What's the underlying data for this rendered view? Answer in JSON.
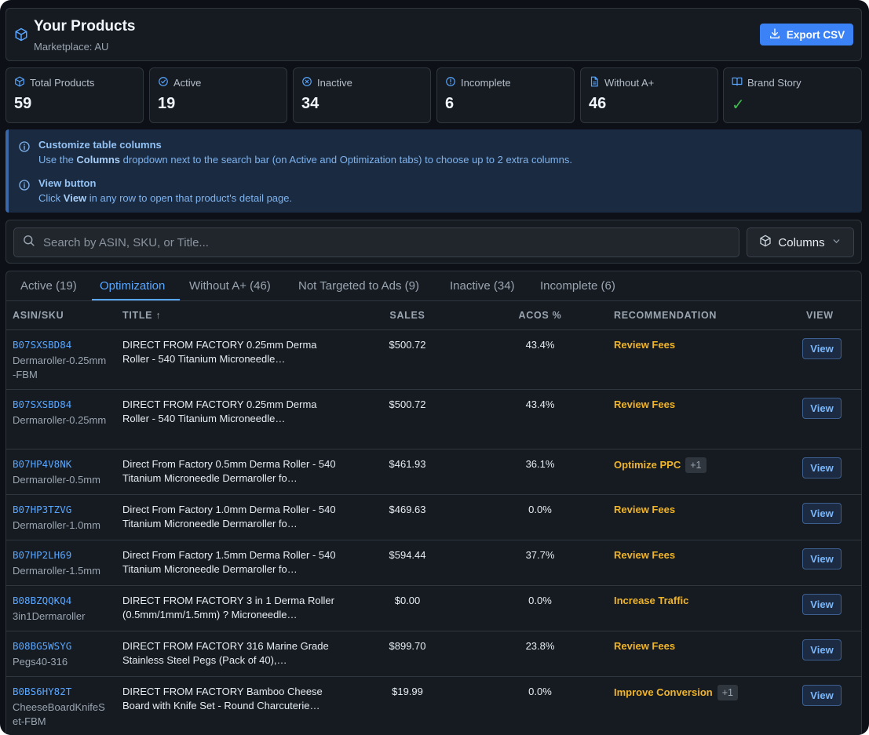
{
  "header": {
    "title": "Your Products",
    "subtitle": "Marketplace: AU",
    "export_label": "Export CSV",
    "icon": "box-icon"
  },
  "stats": [
    {
      "label": "Total Products",
      "value": "59",
      "icon": "box-icon"
    },
    {
      "label": "Active",
      "value": "19",
      "icon": "check-circle-icon"
    },
    {
      "label": "Inactive",
      "value": "34",
      "icon": "x-circle-icon"
    },
    {
      "label": "Incomplete",
      "value": "6",
      "icon": "alert-circle-icon"
    },
    {
      "label": "Without A+",
      "value": "46",
      "icon": "file-icon"
    },
    {
      "label": "Brand Story",
      "value": "✓",
      "icon": "book-open-icon"
    }
  ],
  "info": {
    "columns_title": "Customize table columns",
    "columns_pre": "Use the ",
    "columns_bold": "Columns",
    "columns_post": " dropdown next to the search bar (on Active and Optimization tabs) to choose up to 2 extra columns.",
    "view_title": "View button",
    "view_pre": "Click ",
    "view_bold": "View",
    "view_post": " in any row to open that product's detail page."
  },
  "search": {
    "placeholder": "Search by ASIN, SKU, or Title...",
    "columns_label": "Columns"
  },
  "tabs": [
    {
      "label": "Active (19)"
    },
    {
      "label": "Optimization"
    },
    {
      "label": "Without A+ (46)"
    },
    {
      "label": "Not Targeted to Ads (9)"
    },
    {
      "label": "Inactive (34)"
    },
    {
      "label": "Incomplete (6)"
    }
  ],
  "active_tab": "Optimization",
  "table": {
    "headers": {
      "asin": "ASIN/SKU",
      "title": "TITLE ↑",
      "sales": "SALES",
      "acos": "ACOS %",
      "recommendation": "RECOMMENDATION",
      "view": "VIEW"
    },
    "view_label": "View",
    "rows": [
      {
        "asin": "B07SXSBD84",
        "sku": "Dermaroller-0.25mm-FBM",
        "title": "DIRECT FROM FACTORY 0.25mm Derma Roller - 540 Titanium Microneedle…",
        "sales": "$500.72",
        "acos": "43.4%",
        "rec": "Review Fees",
        "extra": ""
      },
      {
        "asin": "B07SXSBD84",
        "sku": "Dermaroller-0.25mm",
        "title": "DIRECT FROM FACTORY 0.25mm Derma Roller - 540 Titanium Microneedle…",
        "sales": "$500.72",
        "acos": "43.4%",
        "rec": "Review Fees",
        "extra": ""
      },
      {
        "asin": "B07HP4V8NK",
        "sku": "Dermaroller-0.5mm",
        "title": "Direct From Factory 0.5mm Derma Roller - 540 Titanium Microneedle Dermaroller fo…",
        "sales": "$461.93",
        "acos": "36.1%",
        "rec": "Optimize PPC",
        "extra": "+1"
      },
      {
        "asin": "B07HP3TZVG",
        "sku": "Dermaroller-1.0mm",
        "title": "Direct From Factory 1.0mm Derma Roller - 540 Titanium Microneedle Dermaroller fo…",
        "sales": "$469.63",
        "acos": "0.0%",
        "rec": "Review Fees",
        "extra": ""
      },
      {
        "asin": "B07HP2LH69",
        "sku": "Dermaroller-1.5mm",
        "title": "Direct From Factory 1.5mm Derma Roller - 540 Titanium Microneedle Dermaroller fo…",
        "sales": "$594.44",
        "acos": "37.7%",
        "rec": "Review Fees",
        "extra": ""
      },
      {
        "asin": "B08BZQQKQ4",
        "sku": "3in1Dermaroller",
        "title": "DIRECT FROM FACTORY 3 in 1 Derma Roller (0.5mm/1mm/1.5mm) ? Microneedle…",
        "sales": "$0.00",
        "acos": "0.0%",
        "rec": "Increase Traffic",
        "extra": ""
      },
      {
        "asin": "B08BG5WSYG",
        "sku": "Pegs40-316",
        "title": "DIRECT FROM FACTORY 316 Marine Grade Stainless Steel Pegs (Pack of 40),…",
        "sales": "$899.70",
        "acos": "23.8%",
        "rec": "Review Fees",
        "extra": ""
      },
      {
        "asin": "B0BS6HY82T",
        "sku": "CheeseBoardKnifeSet-FBM",
        "title": "DIRECT FROM FACTORY Bamboo Cheese Board with Knife Set - Round Charcuterie…",
        "sales": "$19.99",
        "acos": "0.0%",
        "rec": "Improve Conversion",
        "extra": "+1"
      }
    ]
  },
  "colors": {
    "background": "#0d1117",
    "panel": "#161b22",
    "accent": "#58a6ff",
    "button": "#3b82f6",
    "recommendation": "#f0b429",
    "success": "#3fb950"
  }
}
